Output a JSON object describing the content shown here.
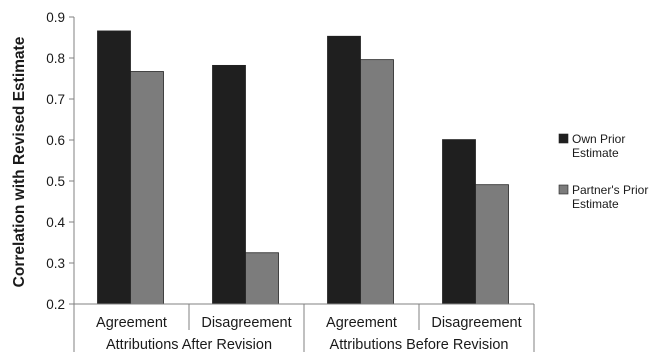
{
  "chart_data": {
    "type": "bar",
    "ylabel": "Correlation with Revised Estimate",
    "ylim": [
      0.2,
      0.9
    ],
    "ytick_step": 0.1,
    "ytick_labels": [
      "0.2",
      "0.3",
      "0.4",
      "0.5",
      "0.6",
      "0.7",
      "0.8",
      "0.9"
    ],
    "grid": false,
    "categories": [
      "Agreement",
      "Disagreement",
      "Agreement",
      "Disagreement"
    ],
    "groups": [
      {
        "label": "Attributions After Revision",
        "categories": [
          "Agreement",
          "Disagreement"
        ]
      },
      {
        "label": "Attributions Before Revision",
        "categories": [
          "Agreement",
          "Disagreement"
        ]
      }
    ],
    "series": [
      {
        "name": "Own Prior Estimate",
        "name_lines": [
          "Own Prior",
          "Estimate"
        ],
        "color": "#1f1f1f",
        "values": [
          0.866,
          0.782,
          0.853,
          0.601
        ]
      },
      {
        "name": "Partner's Prior Estimate",
        "name_lines": [
          "Partner's Prior",
          "Estimate"
        ],
        "color": "#7c7c7c",
        "values": [
          0.767,
          0.325,
          0.796,
          0.491
        ]
      }
    ],
    "legend_position": "right"
  }
}
